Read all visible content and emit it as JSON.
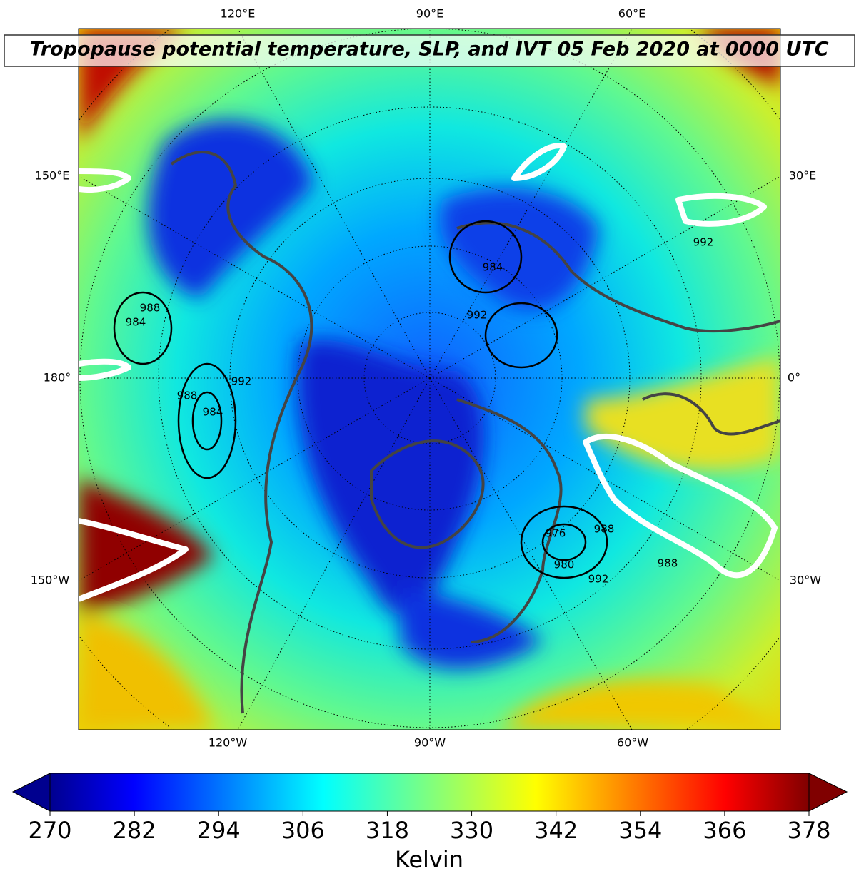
{
  "title": "Tropopause potential temperature, SLP, and IVT 05 Feb 2020 at 0000 UTC",
  "longitude_labels": {
    "top": [
      "120°E",
      "90°E",
      "60°E"
    ],
    "left": [
      "150°E",
      "180°",
      "150°W"
    ],
    "right": [
      "30°E",
      "0°",
      "30°W"
    ],
    "bottom": [
      "120°W",
      "90°W",
      "60°W"
    ]
  },
  "contour_labels": [
    "988",
    "984",
    "992",
    "988",
    "984",
    "976",
    "980",
    "992",
    "988",
    "984",
    "992",
    "988",
    "992"
  ],
  "colorbar": {
    "label": "Kelvin",
    "colormap": "jet",
    "lim": [
      270,
      378
    ],
    "ticks": [
      270,
      282,
      294,
      306,
      318,
      330,
      342,
      354,
      366,
      378
    ]
  }
}
